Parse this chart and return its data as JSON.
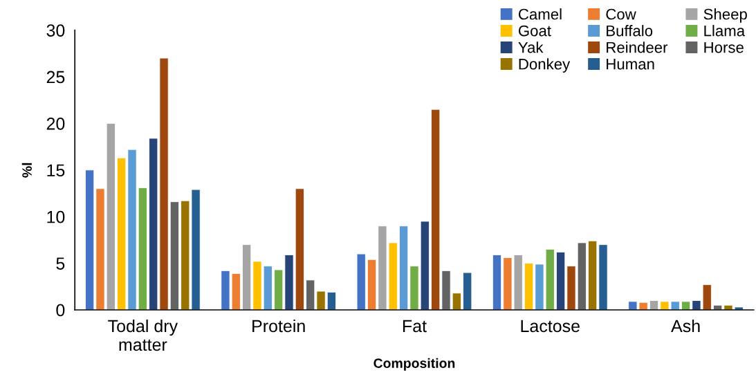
{
  "chart_data": {
    "type": "bar",
    "xlabel": "Composition",
    "ylabel": "%l",
    "categories": [
      "Todal dry\nmatter",
      "Protein",
      "Fat",
      "Lactose",
      "Ash"
    ],
    "ylim": [
      0,
      30
    ],
    "yticks": [
      0,
      5,
      10,
      15,
      20,
      25,
      30
    ],
    "grid": false,
    "legend": "top right",
    "series": [
      {
        "name": "Camel",
        "color": "#4472c4",
        "values": [
          15,
          4.2,
          6,
          5.9,
          0.9
        ]
      },
      {
        "name": "Cow",
        "color": "#ed7d31",
        "values": [
          13,
          3.9,
          5.4,
          5.6,
          0.8
        ]
      },
      {
        "name": "Sheep",
        "color": "#a5a5a5",
        "values": [
          20,
          7,
          9,
          5.9,
          1.0
        ]
      },
      {
        "name": "Goat",
        "color": "#ffc000",
        "values": [
          16.3,
          5.2,
          7.2,
          5.0,
          0.9
        ]
      },
      {
        "name": "Buffalo",
        "color": "#5b9bd5",
        "values": [
          17.2,
          4.7,
          9,
          4.9,
          0.9
        ]
      },
      {
        "name": "Llama",
        "color": "#70ad47",
        "values": [
          13.1,
          4.3,
          4.7,
          6.5,
          0.9
        ]
      },
      {
        "name": "Yak",
        "color": "#264478",
        "values": [
          18.4,
          5.9,
          9.5,
          6.2,
          1.0
        ]
      },
      {
        "name": "Reindeer",
        "color": "#9e480e",
        "values": [
          27,
          13,
          21.5,
          4.7,
          2.7
        ]
      },
      {
        "name": "Horse",
        "color": "#636363",
        "values": [
          11.6,
          3.2,
          4.2,
          7.2,
          0.5
        ]
      },
      {
        "name": "Donkey",
        "color": "#997300",
        "values": [
          11.7,
          2.0,
          1.8,
          7.4,
          0.5
        ]
      },
      {
        "name": "Human",
        "color": "#255e91",
        "values": [
          12.9,
          1.9,
          4.0,
          7.0,
          0.3
        ]
      }
    ]
  }
}
